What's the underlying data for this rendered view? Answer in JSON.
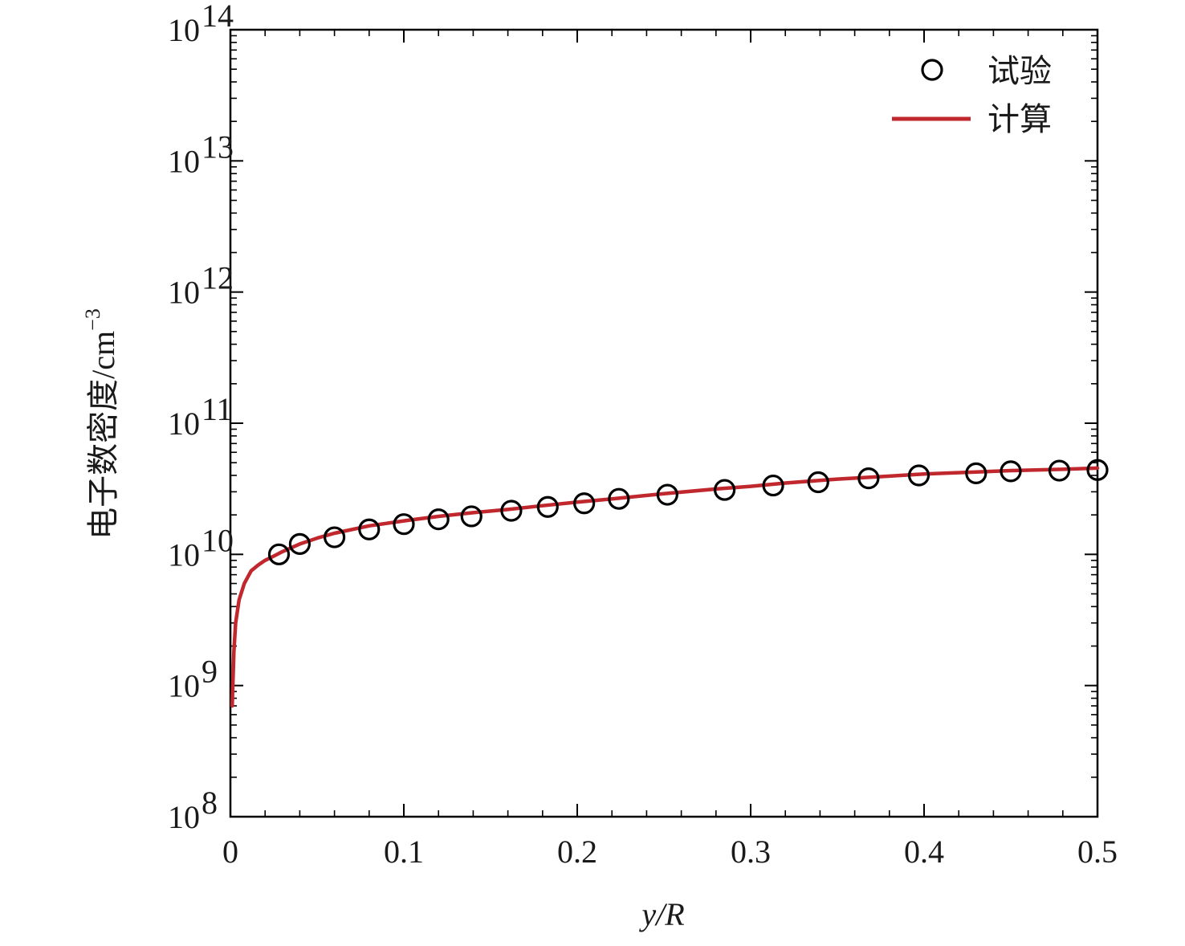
{
  "chart_data": {
    "type": "line",
    "xlabel": "y/R",
    "ylabel": "电子数密度/cm",
    "ylabel_superscript": "−3",
    "xlim": [
      0,
      0.5
    ],
    "ylim": [
      100000000,
      100000000000000
    ],
    "yscale": "log",
    "grid": false,
    "legend_position": "top-right",
    "x_ticks": [
      {
        "value": 0,
        "label": "0"
      },
      {
        "value": 0.1,
        "label": "0.1"
      },
      {
        "value": 0.2,
        "label": "0.2"
      },
      {
        "value": 0.3,
        "label": "0.3"
      },
      {
        "value": 0.4,
        "label": "0.4"
      },
      {
        "value": 0.5,
        "label": "0.5"
      }
    ],
    "y_ticks": [
      {
        "value": 100000000,
        "base": "10",
        "exp": "8"
      },
      {
        "value": 1000000000,
        "base": "10",
        "exp": "9"
      },
      {
        "value": 10000000000,
        "base": "10",
        "exp": "10"
      },
      {
        "value": 100000000000,
        "base": "10",
        "exp": "11"
      },
      {
        "value": 1000000000000,
        "base": "10",
        "exp": "12"
      },
      {
        "value": 10000000000000,
        "base": "10",
        "exp": "13"
      },
      {
        "value": 100000000000000,
        "base": "10",
        "exp": "14"
      }
    ],
    "series": [
      {
        "name": "试验",
        "kind": "scatter",
        "marker": "open-circle",
        "color": "#000000",
        "x": [
          0.028,
          0.04,
          0.06,
          0.08,
          0.1,
          0.12,
          0.139,
          0.162,
          0.183,
          0.204,
          0.224,
          0.252,
          0.285,
          0.313,
          0.339,
          0.368,
          0.397,
          0.43,
          0.45,
          0.478,
          0.5
        ],
        "y": [
          10000000000,
          12000000000,
          13500000000,
          15500000000,
          17000000000,
          18500000000,
          19500000000,
          21500000000,
          23000000000,
          24500000000,
          26500000000,
          28500000000,
          31000000000,
          33500000000,
          35500000000,
          38000000000,
          40000000000,
          41500000000,
          43000000000,
          43500000000,
          44000000000
        ]
      },
      {
        "name": "计算",
        "kind": "line",
        "color": "#c0282e",
        "x": [
          0.001,
          0.002,
          0.003,
          0.005,
          0.008,
          0.012,
          0.016,
          0.02,
          0.025,
          0.03,
          0.04,
          0.05,
          0.06,
          0.08,
          0.1,
          0.12,
          0.14,
          0.16,
          0.18,
          0.2,
          0.22,
          0.25,
          0.28,
          0.3,
          0.32,
          0.35,
          0.38,
          0.4,
          0.43,
          0.45,
          0.48,
          0.5
        ],
        "y": [
          700000000,
          1800000000,
          3000000000,
          4500000000,
          6000000000,
          7500000000,
          8300000000,
          9000000000,
          9700000000,
          10500000000,
          12000000000,
          13300000000,
          14500000000,
          16500000000,
          18000000000,
          19500000000,
          20800000000,
          22000000000,
          23500000000,
          25000000000,
          26500000000,
          29000000000,
          31500000000,
          33000000000,
          35000000000,
          37500000000,
          39500000000,
          41000000000,
          42500000000,
          43500000000,
          44500000000,
          45500000000
        ]
      }
    ]
  }
}
